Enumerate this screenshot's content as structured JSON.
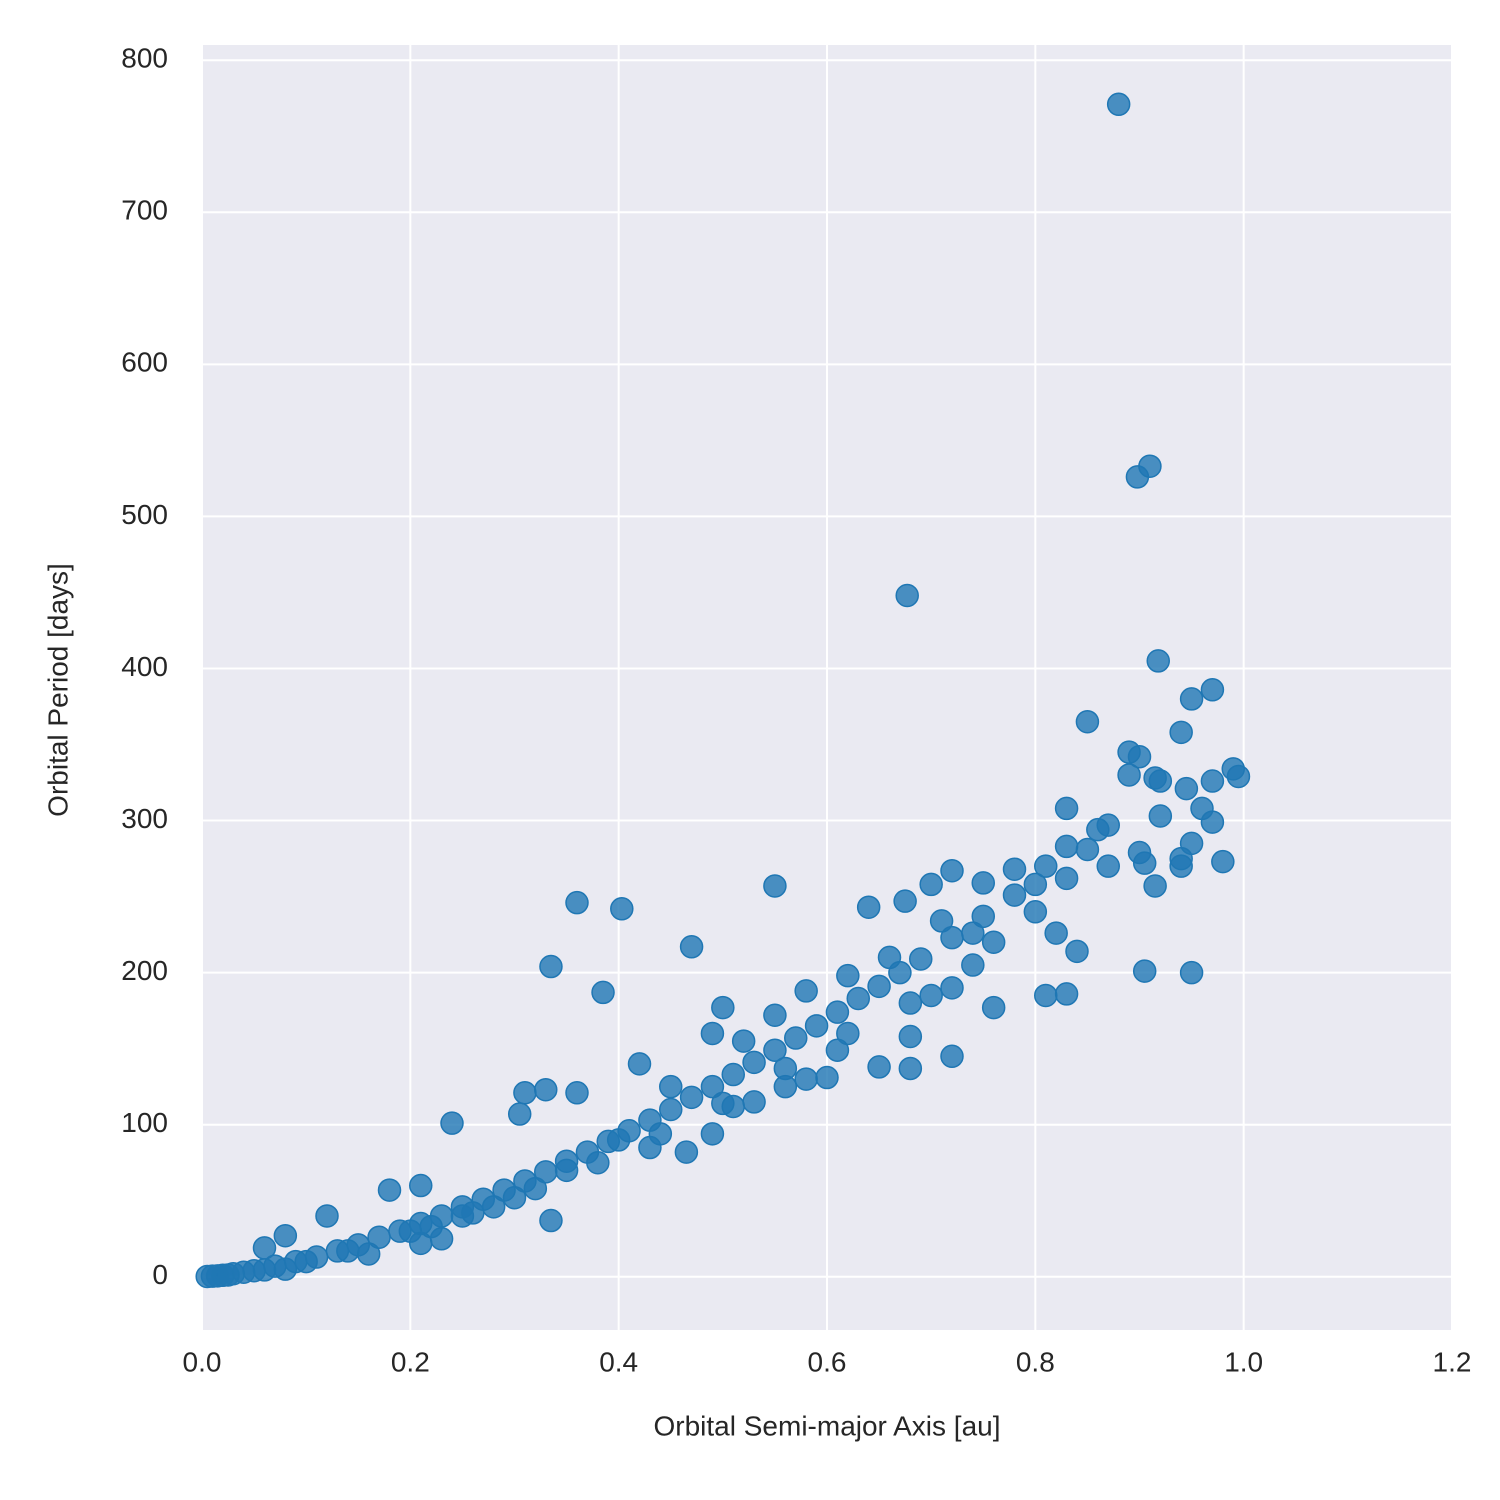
{
  "chart_data": {
    "type": "scatter",
    "x_label": "Orbital Semi-major Axis [au]",
    "y_label": "Orbital Period [days]",
    "color": "#1f77b4",
    "grid": true,
    "xlim": [
      0,
      1.2
    ],
    "ylim": [
      -35,
      810
    ],
    "xticks": [
      {
        "value": 0,
        "label": "0.0"
      },
      0.2,
      0.4,
      0.6,
      0.8,
      {
        "value": 1,
        "label": "1.0"
      },
      1.2
    ],
    "yticks": [
      0,
      100,
      200,
      300,
      400,
      500,
      600,
      700,
      800
    ],
    "x": [
      0.88,
      0.91,
      0.898,
      0.677,
      0.918,
      0.97,
      0.95,
      0.85,
      0.94,
      0.89,
      0.9,
      0.99,
      0.995,
      0.915,
      0.92,
      0.97,
      0.89,
      0.945,
      0.96,
      0.83,
      0.92,
      0.97,
      0.87,
      0.86,
      0.95,
      0.9,
      0.94,
      0.905,
      0.98,
      0.94,
      0.915,
      0.83,
      0.85,
      0.87,
      0.81,
      0.78,
      0.72,
      0.7,
      0.75,
      0.8,
      0.83,
      0.675,
      0.64,
      0.55,
      0.36,
      0.403,
      0.47,
      0.335,
      0.385,
      0.905,
      0.95,
      0.81,
      0.83,
      0.84,
      0.76,
      0.72,
      0.7,
      0.72,
      0.68,
      0.68,
      0.65,
      0.6,
      0.61,
      0.49,
      0.465,
      0.335,
      0.24,
      0.31,
      0.305,
      0.33,
      0.36,
      0.82,
      0.8,
      0.76,
      0.74,
      0.71,
      0.66,
      0.62,
      0.58,
      0.55,
      0.5,
      0.49,
      0.52,
      0.42,
      0.45,
      0.18,
      0.21,
      0.12,
      0.08,
      0.06,
      0.23,
      0.21,
      0.16,
      0.08,
      0.43,
      0.56,
      0.58,
      0.53,
      0.51,
      0.01,
      0.02,
      0.03,
      0.04,
      0.05,
      0.07,
      0.09,
      0.11,
      0.13,
      0.15,
      0.17,
      0.19,
      0.21,
      0.23,
      0.25,
      0.27,
      0.29,
      0.31,
      0.33,
      0.35,
      0.37,
      0.39,
      0.41,
      0.43,
      0.45,
      0.47,
      0.49,
      0.51,
      0.53,
      0.55,
      0.57,
      0.59,
      0.61,
      0.63,
      0.65,
      0.67,
      0.69,
      0.72,
      0.75,
      0.78,
      0.005,
      0.015,
      0.025,
      0.06,
      0.1,
      0.14,
      0.2,
      0.26,
      0.32,
      0.38,
      0.44,
      0.5,
      0.56,
      0.62,
      0.68,
      0.74,
      0.4,
      0.35,
      0.3,
      0.28,
      0.25,
      0.22
    ],
    "values": [
      771,
      533,
      526,
      448,
      405,
      386,
      380,
      365,
      358,
      345,
      342,
      334,
      329,
      328,
      326,
      326,
      330,
      321,
      308,
      308,
      303,
      299,
      297,
      294,
      285,
      279,
      275,
      272,
      273,
      270,
      257,
      283,
      281,
      270,
      270,
      268,
      267,
      258,
      259,
      258,
      262,
      247,
      243,
      257,
      246,
      242,
      217,
      204,
      187,
      201,
      200,
      185,
      186,
      214,
      177,
      190,
      185,
      145,
      158,
      137,
      138,
      131,
      149,
      94,
      82,
      37,
      101,
      121,
      107,
      123,
      121,
      226,
      240,
      220,
      226,
      234,
      210,
      198,
      188,
      172,
      177,
      160,
      155,
      140,
      125,
      57,
      60,
      40,
      27,
      19,
      25,
      22,
      15,
      5,
      85,
      125,
      130,
      115,
      112,
      0.4,
      1,
      2,
      3,
      4,
      7,
      10,
      13,
      17,
      21,
      26,
      30,
      35,
      40,
      46,
      51,
      57,
      63,
      69,
      76,
      82,
      89,
      96,
      103,
      110,
      118,
      125,
      133,
      141,
      149,
      157,
      165,
      174,
      183,
      191,
      200,
      209,
      223,
      237,
      251,
      0.2,
      0.6,
      1.2,
      4.5,
      10,
      17,
      30,
      42,
      58,
      75,
      94,
      114,
      137,
      160,
      180,
      205,
      90,
      70,
      52,
      46,
      40,
      33
    ]
  }
}
